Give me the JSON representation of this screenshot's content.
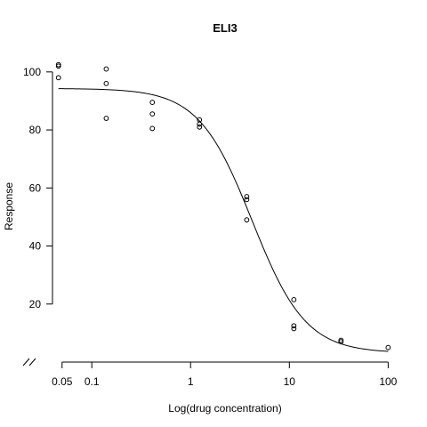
{
  "chart_data": {
    "type": "scatter",
    "title": "ELI3",
    "xlabel": "Log(drug concentration)",
    "ylabel": "Response",
    "x_scale": "log",
    "x_ticks": [
      0.05,
      0.1,
      1,
      10,
      100
    ],
    "x_tick_labels": [
      "0.05",
      "0.1",
      "1",
      "10",
      "100"
    ],
    "y_ticks": [
      20,
      40,
      60,
      80,
      100
    ],
    "y_tick_labels": [
      "20",
      "40",
      "60",
      "80",
      "100"
    ],
    "xlim": [
      0.04,
      130
    ],
    "ylim": [
      0,
      107
    ],
    "grid": false,
    "axis_break": true,
    "points": [
      {
        "x": 0.046,
        "y": 102.5
      },
      {
        "x": 0.046,
        "y": 102
      },
      {
        "x": 0.046,
        "y": 98
      },
      {
        "x": 0.14,
        "y": 101
      },
      {
        "x": 0.14,
        "y": 96
      },
      {
        "x": 0.14,
        "y": 84
      },
      {
        "x": 0.41,
        "y": 89.5
      },
      {
        "x": 0.41,
        "y": 85.5
      },
      {
        "x": 0.41,
        "y": 80.5
      },
      {
        "x": 1.23,
        "y": 83.5
      },
      {
        "x": 1.23,
        "y": 82
      },
      {
        "x": 1.23,
        "y": 81
      },
      {
        "x": 3.7,
        "y": 57
      },
      {
        "x": 3.7,
        "y": 56
      },
      {
        "x": 3.7,
        "y": 49
      },
      {
        "x": 11.1,
        "y": 21.5
      },
      {
        "x": 11.1,
        "y": 12.5
      },
      {
        "x": 11.1,
        "y": 11.5
      },
      {
        "x": 33.3,
        "y": 7.5
      },
      {
        "x": 33.3,
        "y": 7
      },
      {
        "x": 100,
        "y": 5
      }
    ],
    "fit": {
      "model": "four-parameter log-logistic",
      "top": 94.3,
      "bottom": 3.1,
      "ec50": 4.2,
      "hill": 1.6,
      "x_range": [
        0.046,
        100
      ]
    }
  }
}
